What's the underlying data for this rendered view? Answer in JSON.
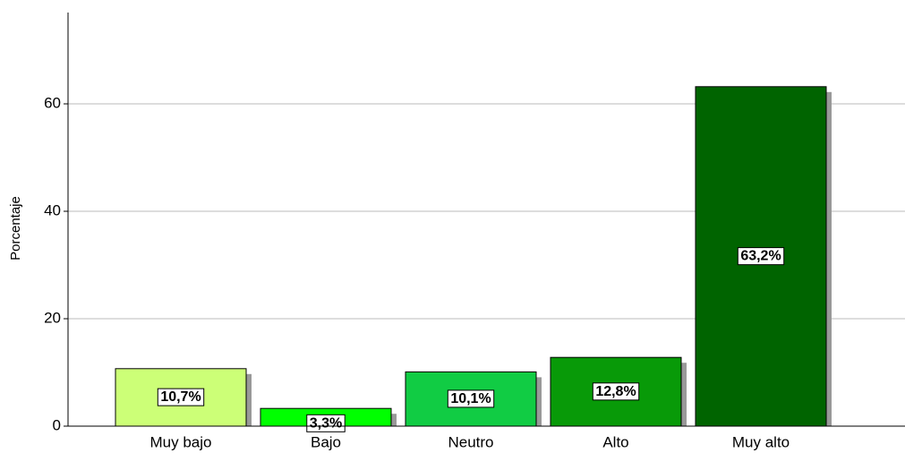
{
  "chart_data": {
    "type": "bar",
    "y_label": "Porcentaje",
    "categories": [
      "Muy bajo",
      "Bajo",
      "Neutro",
      "Alto",
      "Muy alto"
    ],
    "values": [
      10.7,
      3.3,
      10.1,
      12.8,
      63.2
    ],
    "value_labels": [
      "10,7%",
      "3,3%",
      "10,1%",
      "12,8%",
      "63,2%"
    ],
    "colors": [
      "#ccff77",
      "#00ff00",
      "#11cc44",
      "#089a08",
      "#006400"
    ],
    "ylim": [
      0,
      77
    ],
    "yticks": [
      0,
      20,
      40,
      60
    ],
    "grid": true
  }
}
